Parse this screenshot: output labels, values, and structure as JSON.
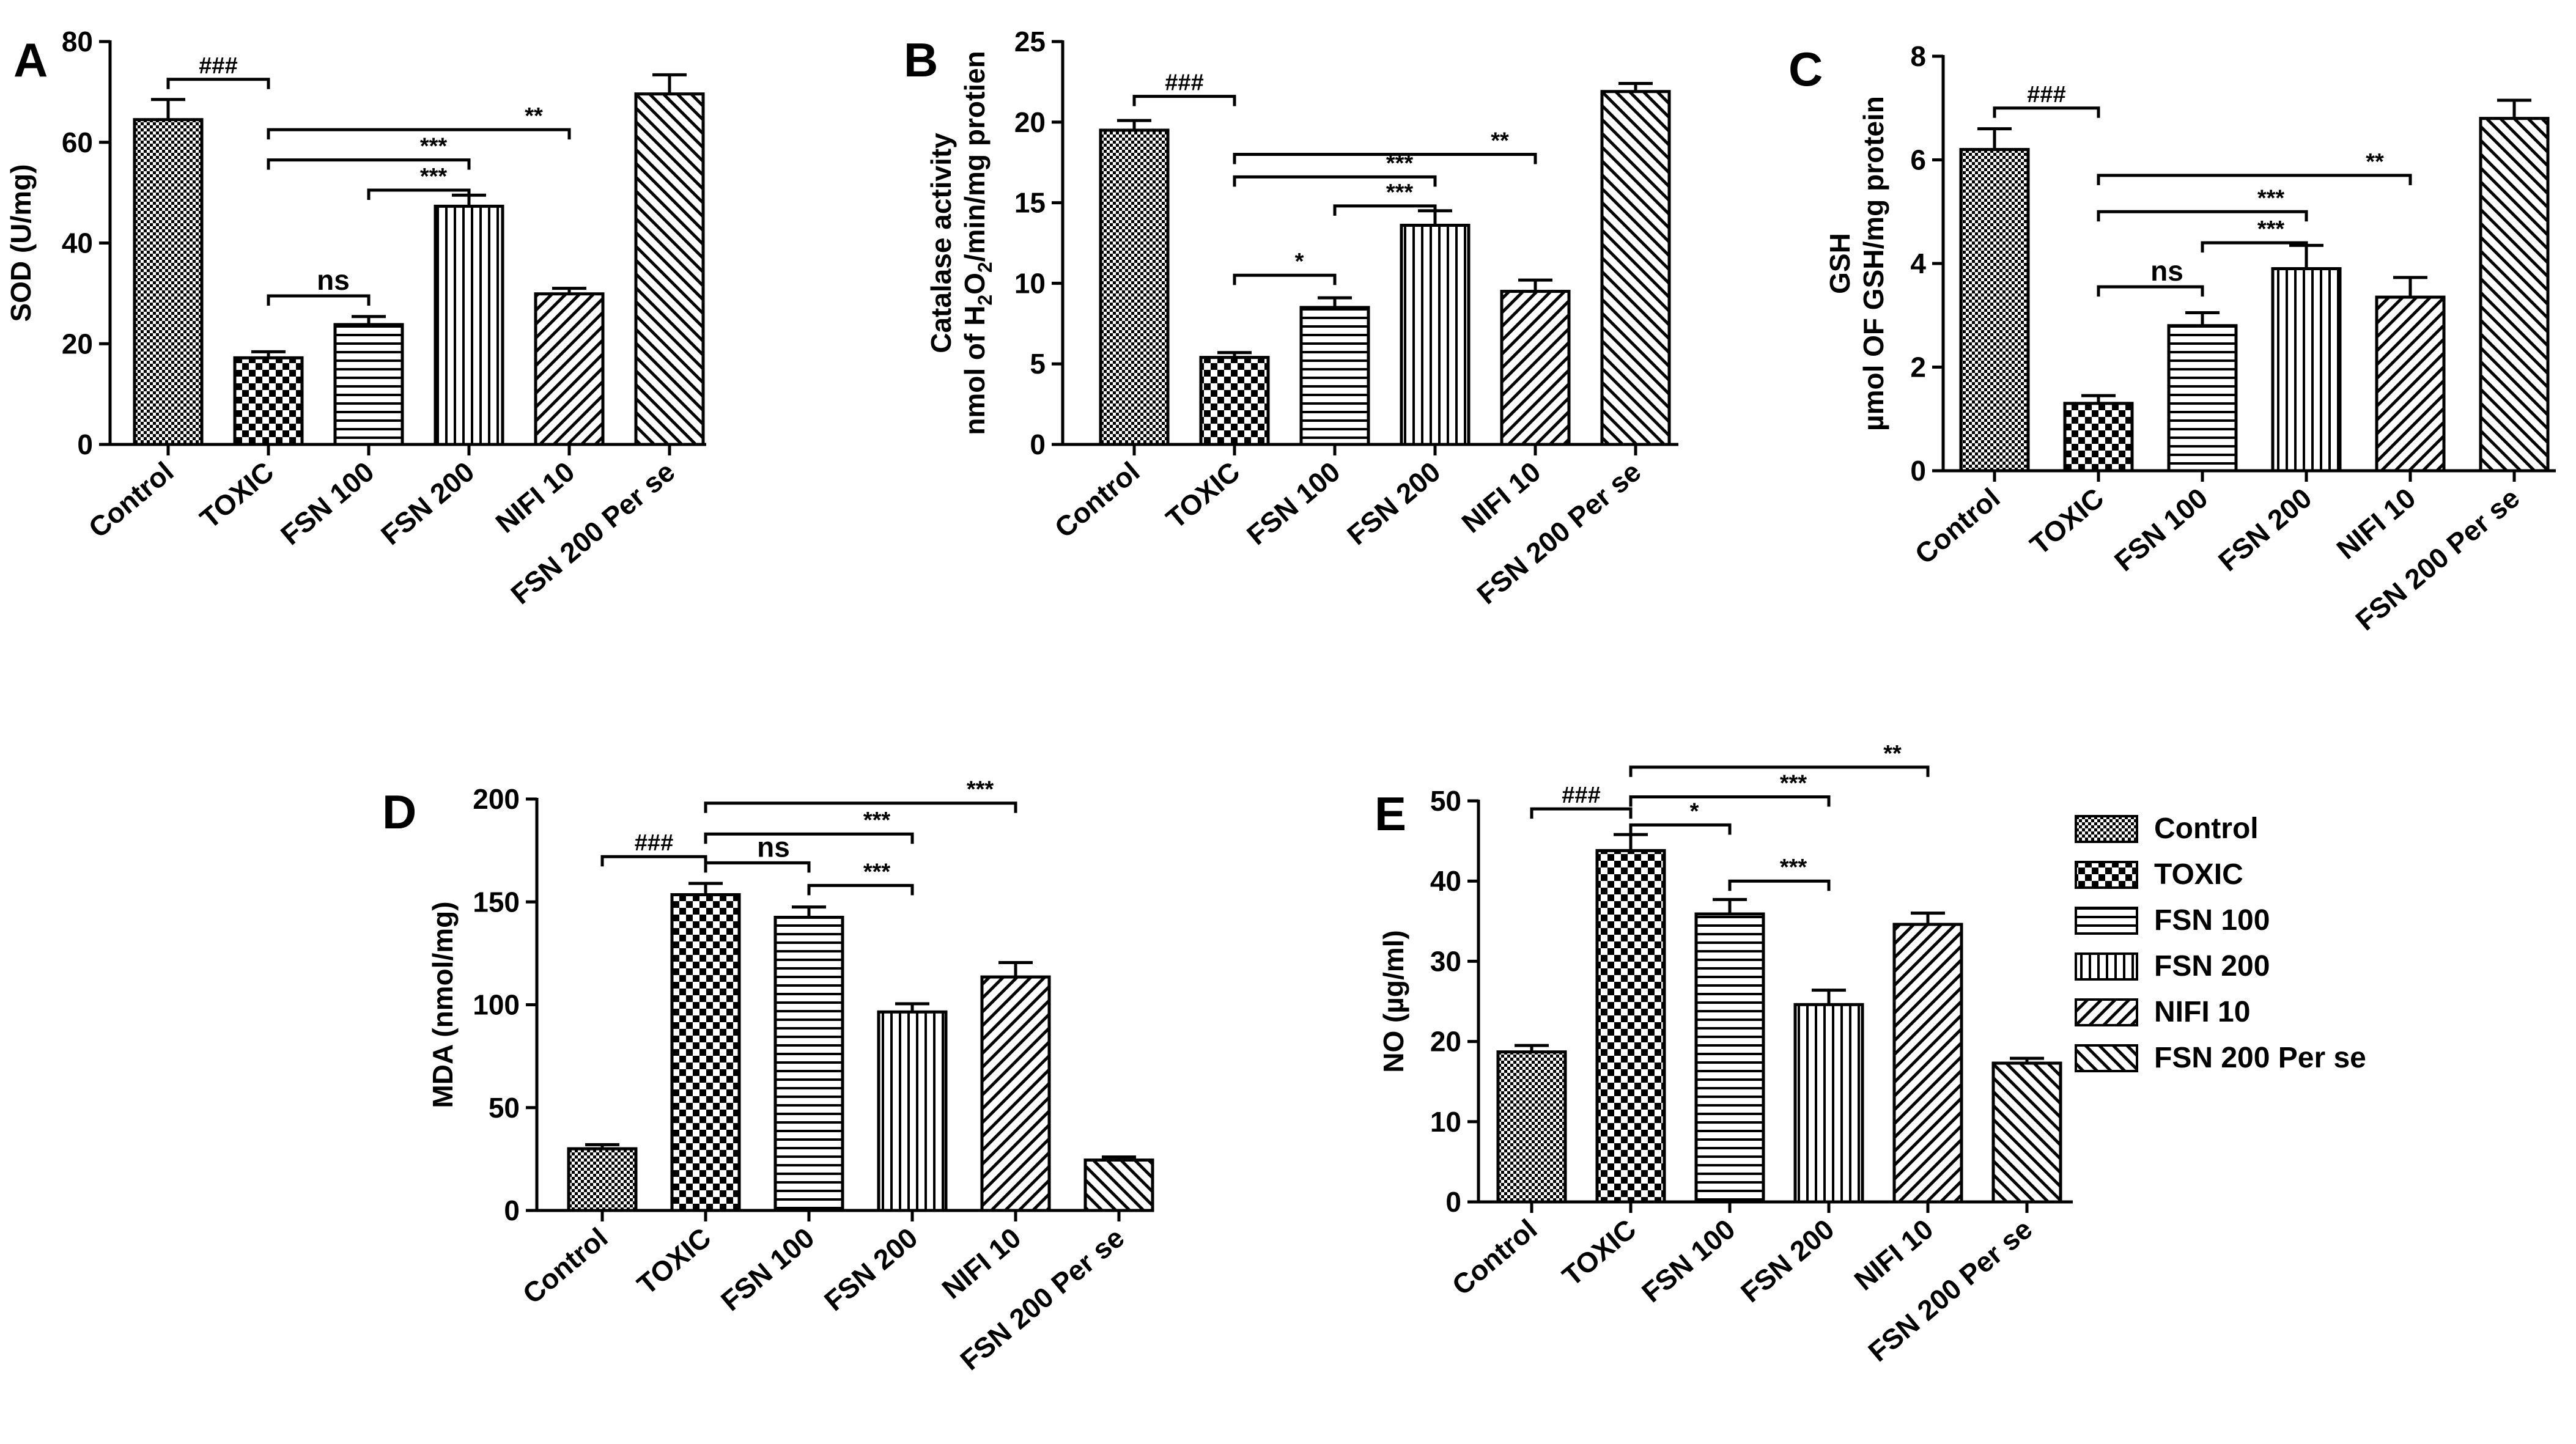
{
  "groups": [
    "Control",
    "TOXIC",
    "FSN 100",
    "FSN 200",
    "NIFI 10",
    "FSN 200 Per se"
  ],
  "patterns": [
    "checker-small",
    "checker-large",
    "hlines",
    "vlines",
    "diag-right",
    "diag-left"
  ],
  "colors": {
    "ink": "#000000",
    "background": "#ffffff"
  },
  "legend": {
    "items": [
      {
        "label": "Control",
        "pattern": "checker-small"
      },
      {
        "label": "TOXIC",
        "pattern": "checker-large"
      },
      {
        "label": "FSN 100",
        "pattern": "hlines"
      },
      {
        "label": "FSN 200",
        "pattern": "vlines"
      },
      {
        "label": "NIFI 10",
        "pattern": "diag-right"
      },
      {
        "label": "FSN 200 Per se",
        "pattern": "diag-left"
      }
    ]
  },
  "chart_data": [
    {
      "id": "A",
      "letter": "A",
      "type": "bar",
      "ylabel_lines": [
        "SOD (U/mg)"
      ],
      "ylim": [
        0,
        80
      ],
      "yticks": [
        0,
        20,
        40,
        60,
        80
      ],
      "categories": [
        "Control",
        "TOXIC",
        "FSN 100",
        "FSN 200",
        "NIFI 10",
        "FSN 200 Per se"
      ],
      "values": [
        64.5,
        17.2,
        23.8,
        47.3,
        29.9,
        69.6
      ],
      "errors": [
        4.0,
        1.2,
        1.6,
        2.2,
        1.1,
        3.8
      ],
      "annotations": [
        {
          "from": 0,
          "to": 1,
          "label": "###",
          "level": 72.5
        },
        {
          "from": 1,
          "to": 4,
          "label": "**",
          "level": 62.5
        },
        {
          "from": 1,
          "to": 3,
          "label": "***",
          "level": 56.5
        },
        {
          "from": 2,
          "to": 3,
          "label": "***",
          "level": 50.5
        },
        {
          "from": 1,
          "to": 2,
          "label": "ns",
          "level": 29.5
        }
      ]
    },
    {
      "id": "B",
      "letter": "B",
      "type": "bar",
      "ylabel_lines": [
        "Catalase activity",
        "nmol of H2O2/min/mg protien"
      ],
      "ylim": [
        0,
        25
      ],
      "yticks": [
        0,
        5,
        10,
        15,
        20,
        25
      ],
      "categories": [
        "Control",
        "TOXIC",
        "FSN 100",
        "FSN 200",
        "NIFI 10",
        "FSN 200 Per se"
      ],
      "values": [
        19.5,
        5.4,
        8.5,
        13.6,
        9.5,
        21.9
      ],
      "errors": [
        0.6,
        0.3,
        0.6,
        0.9,
        0.7,
        0.5
      ],
      "annotations": [
        {
          "from": 0,
          "to": 1,
          "label": "###",
          "level": 21.6
        },
        {
          "from": 1,
          "to": 4,
          "label": "**",
          "level": 18.0
        },
        {
          "from": 1,
          "to": 3,
          "label": "***",
          "level": 16.6
        },
        {
          "from": 2,
          "to": 3,
          "label": "***",
          "level": 14.8
        },
        {
          "from": 1,
          "to": 2,
          "label": "*",
          "level": 10.5
        }
      ]
    },
    {
      "id": "C",
      "letter": "C",
      "type": "bar",
      "ylabel_lines": [
        "GSH",
        "µmol OF GSH/mg protein"
      ],
      "ylim": [
        0,
        8
      ],
      "yticks": [
        0,
        2,
        4,
        6,
        8
      ],
      "categories": [
        "Control",
        "TOXIC",
        "FSN 100",
        "FSN 200",
        "NIFI 10",
        "FSN 200 Per se"
      ],
      "values": [
        6.2,
        1.3,
        2.8,
        3.9,
        3.35,
        6.8
      ],
      "errors": [
        0.4,
        0.15,
        0.25,
        0.45,
        0.38,
        0.35
      ],
      "annotations": [
        {
          "from": 0,
          "to": 1,
          "label": "###",
          "level": 7.0
        },
        {
          "from": 1,
          "to": 4,
          "label": "**",
          "level": 5.7
        },
        {
          "from": 1,
          "to": 3,
          "label": "***",
          "level": 5.0
        },
        {
          "from": 2,
          "to": 3,
          "label": "***",
          "level": 4.4
        },
        {
          "from": 1,
          "to": 2,
          "label": "ns",
          "level": 3.55
        }
      ]
    },
    {
      "id": "D",
      "letter": "D",
      "type": "bar",
      "ylabel_lines": [
        "MDA (nmol/mg)"
      ],
      "ylim": [
        0,
        200
      ],
      "yticks": [
        0,
        50,
        100,
        150,
        200
      ],
      "categories": [
        "Control",
        "TOXIC",
        "FSN 100",
        "FSN 200",
        "NIFI 10",
        "FSN 200 Per se"
      ],
      "values": [
        30,
        153.5,
        142.5,
        96.5,
        113.5,
        24.5
      ],
      "errors": [
        2.0,
        5.5,
        5.0,
        4.0,
        7.0,
        1.5
      ],
      "annotations": [
        {
          "from": 0,
          "to": 1,
          "label": "###",
          "level": 172
        },
        {
          "from": 1,
          "to": 4,
          "label": "***",
          "level": 198
        },
        {
          "from": 1,
          "to": 3,
          "label": "***",
          "level": 183
        },
        {
          "from": 1,
          "to": 2,
          "label": "ns",
          "level": 169
        },
        {
          "from": 2,
          "to": 3,
          "label": "***",
          "level": 158
        }
      ]
    },
    {
      "id": "E",
      "letter": "E",
      "type": "bar",
      "ylabel_lines": [
        "NO (µg/ml)"
      ],
      "ylim": [
        0,
        50
      ],
      "yticks": [
        0,
        10,
        20,
        30,
        40,
        50
      ],
      "categories": [
        "Control",
        "TOXIC",
        "FSN 100",
        "FSN 200",
        "NIFI 10",
        "FSN 200 Per se"
      ],
      "values": [
        18.7,
        43.8,
        35.9,
        24.6,
        34.6,
        17.3
      ],
      "errors": [
        0.8,
        2.0,
        1.8,
        1.8,
        1.4,
        0.6
      ],
      "annotations": [
        {
          "from": 0,
          "to": 1,
          "label": "###",
          "level": 49.0
        },
        {
          "from": 1,
          "to": 4,
          "label": "**",
          "level": 54.2
        },
        {
          "from": 1,
          "to": 3,
          "label": "***",
          "level": 50.5
        },
        {
          "from": 1,
          "to": 2,
          "label": "*",
          "level": 47.0
        },
        {
          "from": 2,
          "to": 3,
          "label": "***",
          "level": 40.0
        }
      ]
    }
  ]
}
